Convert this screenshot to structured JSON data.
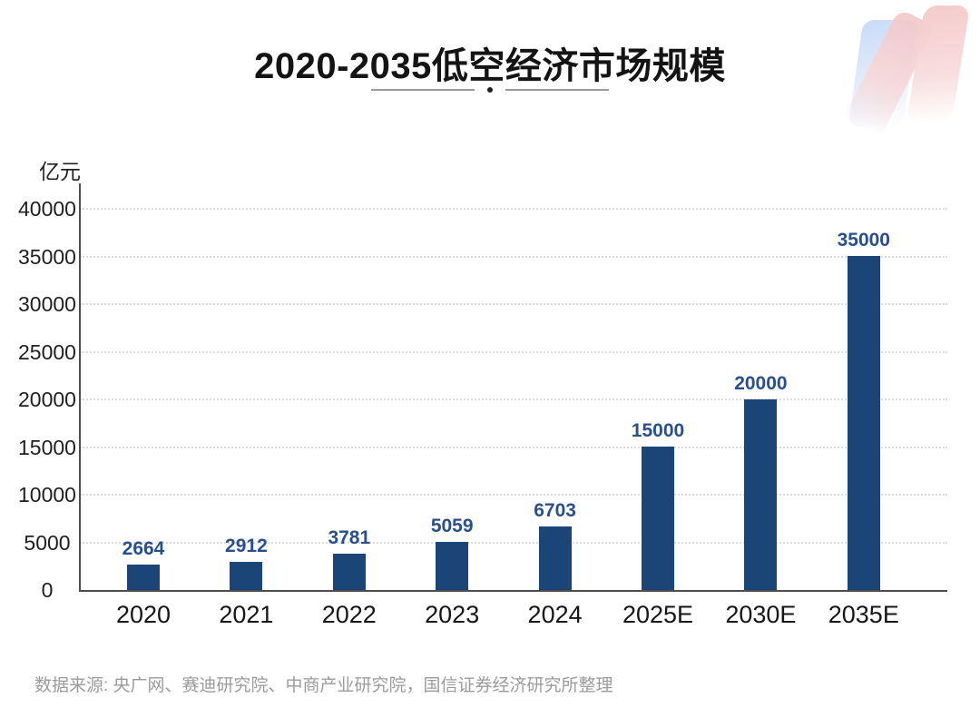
{
  "header": {
    "title": "2020-2035低空经济市场规模"
  },
  "chart": {
    "unit": "亿元"
  },
  "colors": {
    "bar": "#1C4577",
    "value_label": "#29508C",
    "axis": "#4d4d4d",
    "gridline": "#dcdcdc",
    "logo_blue": "#c8dbf7",
    "logo_pink": "#f4c9c9"
  },
  "chart_data": {
    "type": "bar",
    "title": "2020-2035低空经济市场规模",
    "categories": [
      "2020",
      "2021",
      "2022",
      "2023",
      "2024",
      "2025E",
      "2030E",
      "2035E"
    ],
    "values": [
      2664,
      2912,
      3781,
      5059,
      6703,
      15000,
      20000,
      35000
    ],
    "value_labels": [
      "2664",
      "2912",
      "3781",
      "5059",
      "6703",
      "15000",
      "20000",
      "35000"
    ],
    "xlabel": "",
    "ylabel": "亿元",
    "ylim": [
      0,
      40000
    ],
    "yticks": [
      0,
      5000,
      10000,
      15000,
      20000,
      25000,
      30000,
      35000,
      40000
    ],
    "grid": "horizontal-dotted",
    "legend": "none",
    "bar_color": "#1C4577",
    "value_labels_shown": true
  },
  "footer": {
    "source": "数据来源: 央广网、赛迪研究院、中商产业研究院，国信证券经济研究所整理"
  }
}
